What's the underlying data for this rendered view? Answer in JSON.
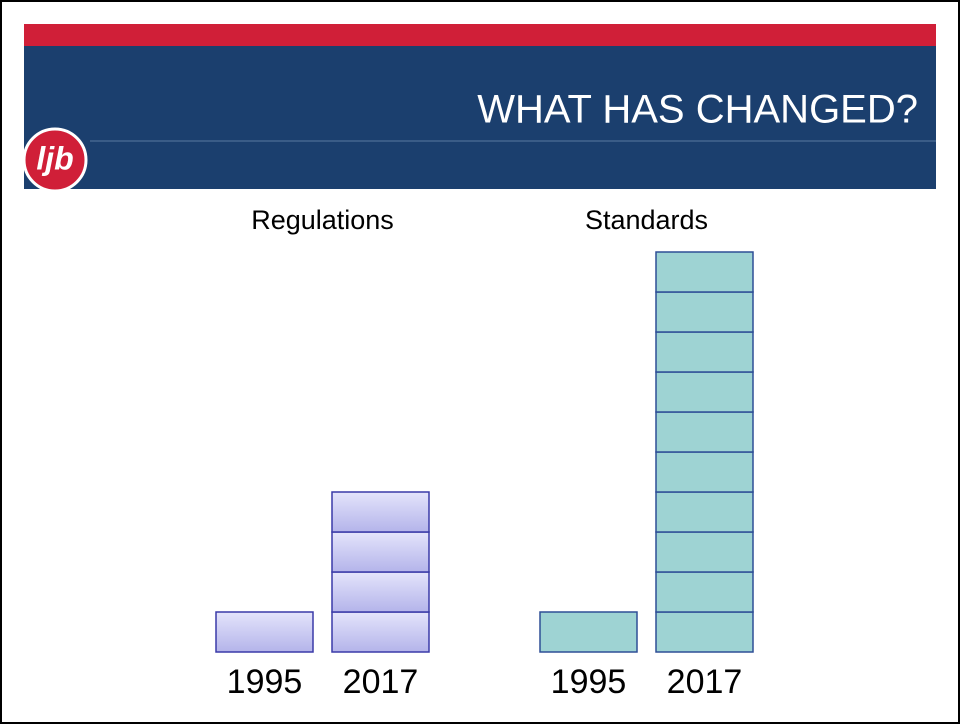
{
  "header": {
    "title": "WHAT HAS CHANGED?"
  },
  "logo": "ljb",
  "panels": [
    {
      "title": "Regulations",
      "color": "#c4c4f0",
      "bars": [
        {
          "label": "1995",
          "blocks": 1
        },
        {
          "label": "2017",
          "blocks": 4
        }
      ]
    },
    {
      "title": "Standards",
      "color": "#9ed3d3",
      "bars": [
        {
          "label": "1995",
          "blocks": 1
        },
        {
          "label": "2017",
          "blocks": 10
        }
      ]
    }
  ]
}
